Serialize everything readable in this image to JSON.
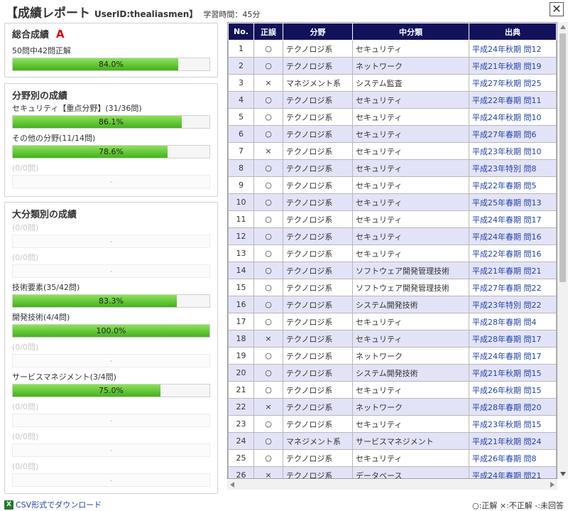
{
  "header": {
    "title": "【成績レポート",
    "user": "UserID:thealiasmen】",
    "study_time": "学習時間：45分"
  },
  "close": "✕",
  "overall": {
    "title": "総合成績",
    "grade": "A",
    "detail": "50問中42問正解",
    "percent": 84.0,
    "bar_text": "84.0%"
  },
  "field_section": {
    "title": "分野別の成績",
    "items": [
      {
        "label": "セキュリティ【重点分野】(31/36問)",
        "percent": 86.1,
        "bar_text": "86.1%"
      },
      {
        "label": "その他の分野(11/14問)",
        "percent": 78.6,
        "bar_text": "78.6%"
      },
      {
        "label": "(0/0問)",
        "percent": 0,
        "bar_text": "-"
      }
    ]
  },
  "category_section": {
    "title": "大分類別の成績",
    "items": [
      {
        "label": "(0/0問)",
        "percent": 0,
        "bar_text": "-"
      },
      {
        "label": "(0/0問)",
        "percent": 0,
        "bar_text": "-"
      },
      {
        "label": "技術要素(35/42問)",
        "percent": 83.3,
        "bar_text": "83.3%"
      },
      {
        "label": "開発技術(4/4問)",
        "percent": 100.0,
        "bar_text": "100.0%"
      },
      {
        "label": "(0/0問)",
        "percent": 0,
        "bar_text": "-"
      },
      {
        "label": "サービスマネジメント(3/4問)",
        "percent": 75.0,
        "bar_text": "75.0%"
      },
      {
        "label": "(0/0問)",
        "percent": 0,
        "bar_text": "-"
      },
      {
        "label": "(0/0問)",
        "percent": 0,
        "bar_text": "-"
      },
      {
        "label": "(0/0問)",
        "percent": 0,
        "bar_text": "-"
      }
    ]
  },
  "table": {
    "headers": [
      "No.",
      "正誤",
      "分野",
      "中分類",
      "出典"
    ],
    "rows": [
      [
        "1",
        "○",
        "テクノロジ系",
        "セキュリティ",
        "平成24年秋期 問12"
      ],
      [
        "2",
        "○",
        "テクノロジ系",
        "ネットワーク",
        "平成21年秋期 問19"
      ],
      [
        "3",
        "×",
        "マネジメント系",
        "システム監査",
        "平成27年秋期 問25"
      ],
      [
        "4",
        "○",
        "テクノロジ系",
        "セキュリティ",
        "平成22年春期 問11"
      ],
      [
        "5",
        "○",
        "テクノロジ系",
        "セキュリティ",
        "平成24年秋期 問10"
      ],
      [
        "6",
        "○",
        "テクノロジ系",
        "セキュリティ",
        "平成27年春期 問6"
      ],
      [
        "7",
        "×",
        "テクノロジ系",
        "セキュリティ",
        "平成23年秋期 問10"
      ],
      [
        "8",
        "○",
        "テクノロジ系",
        "セキュリティ",
        "平成23年特別 問8"
      ],
      [
        "9",
        "○",
        "テクノロジ系",
        "セキュリティ",
        "平成22年春期 問5"
      ],
      [
        "10",
        "○",
        "テクノロジ系",
        "セキュリティ",
        "平成25年春期 問13"
      ],
      [
        "11",
        "○",
        "テクノロジ系",
        "セキュリティ",
        "平成24年春期 問17"
      ],
      [
        "12",
        "○",
        "テクノロジ系",
        "セキュリティ",
        "平成24年春期 問16"
      ],
      [
        "13",
        "○",
        "テクノロジ系",
        "セキュリティ",
        "平成22年春期 問16"
      ],
      [
        "14",
        "○",
        "テクノロジ系",
        "ソフトウェア開発管理技術",
        "平成21年春期 問21"
      ],
      [
        "15",
        "○",
        "テクノロジ系",
        "ソフトウェア開発管理技術",
        "平成27年春期 問22"
      ],
      [
        "16",
        "○",
        "テクノロジ系",
        "システム開発技術",
        "平成23年特別 問22"
      ],
      [
        "17",
        "○",
        "テクノロジ系",
        "セキュリティ",
        "平成28年春期 問4"
      ],
      [
        "18",
        "×",
        "テクノロジ系",
        "セキュリティ",
        "平成28年春期 問17"
      ],
      [
        "19",
        "○",
        "テクノロジ系",
        "ネットワーク",
        "平成24年春期 問17"
      ],
      [
        "20",
        "○",
        "テクノロジ系",
        "システム開発技術",
        "平成21年秋期 問15"
      ],
      [
        "21",
        "○",
        "テクノロジ系",
        "セキュリティ",
        "平成26年秋期 問15"
      ],
      [
        "22",
        "×",
        "テクノロジ系",
        "ネットワーク",
        "平成28年春期 問20"
      ],
      [
        "23",
        "○",
        "テクノロジ系",
        "セキュリティ",
        "平成23年秋期 問15"
      ],
      [
        "24",
        "○",
        "マネジメント系",
        "サービスマネジメント",
        "平成21年秋期 問24"
      ],
      [
        "25",
        "○",
        "テクノロジ系",
        "セキュリティ",
        "平成26年春期 問8"
      ],
      [
        "26",
        "×",
        "テクノロジ系",
        "データベース",
        "平成24年春期 問21"
      ]
    ]
  },
  "csv_link": "CSV形式でダウンロード",
  "legend": "○:正解 ×:不正解 -:未回答",
  "colors": {
    "header_bg": "#12125a",
    "alt_row": "#e3e3f8",
    "bar_green": "#43b21b",
    "grade_red": "#e60000",
    "link_blue": "#2244aa"
  }
}
